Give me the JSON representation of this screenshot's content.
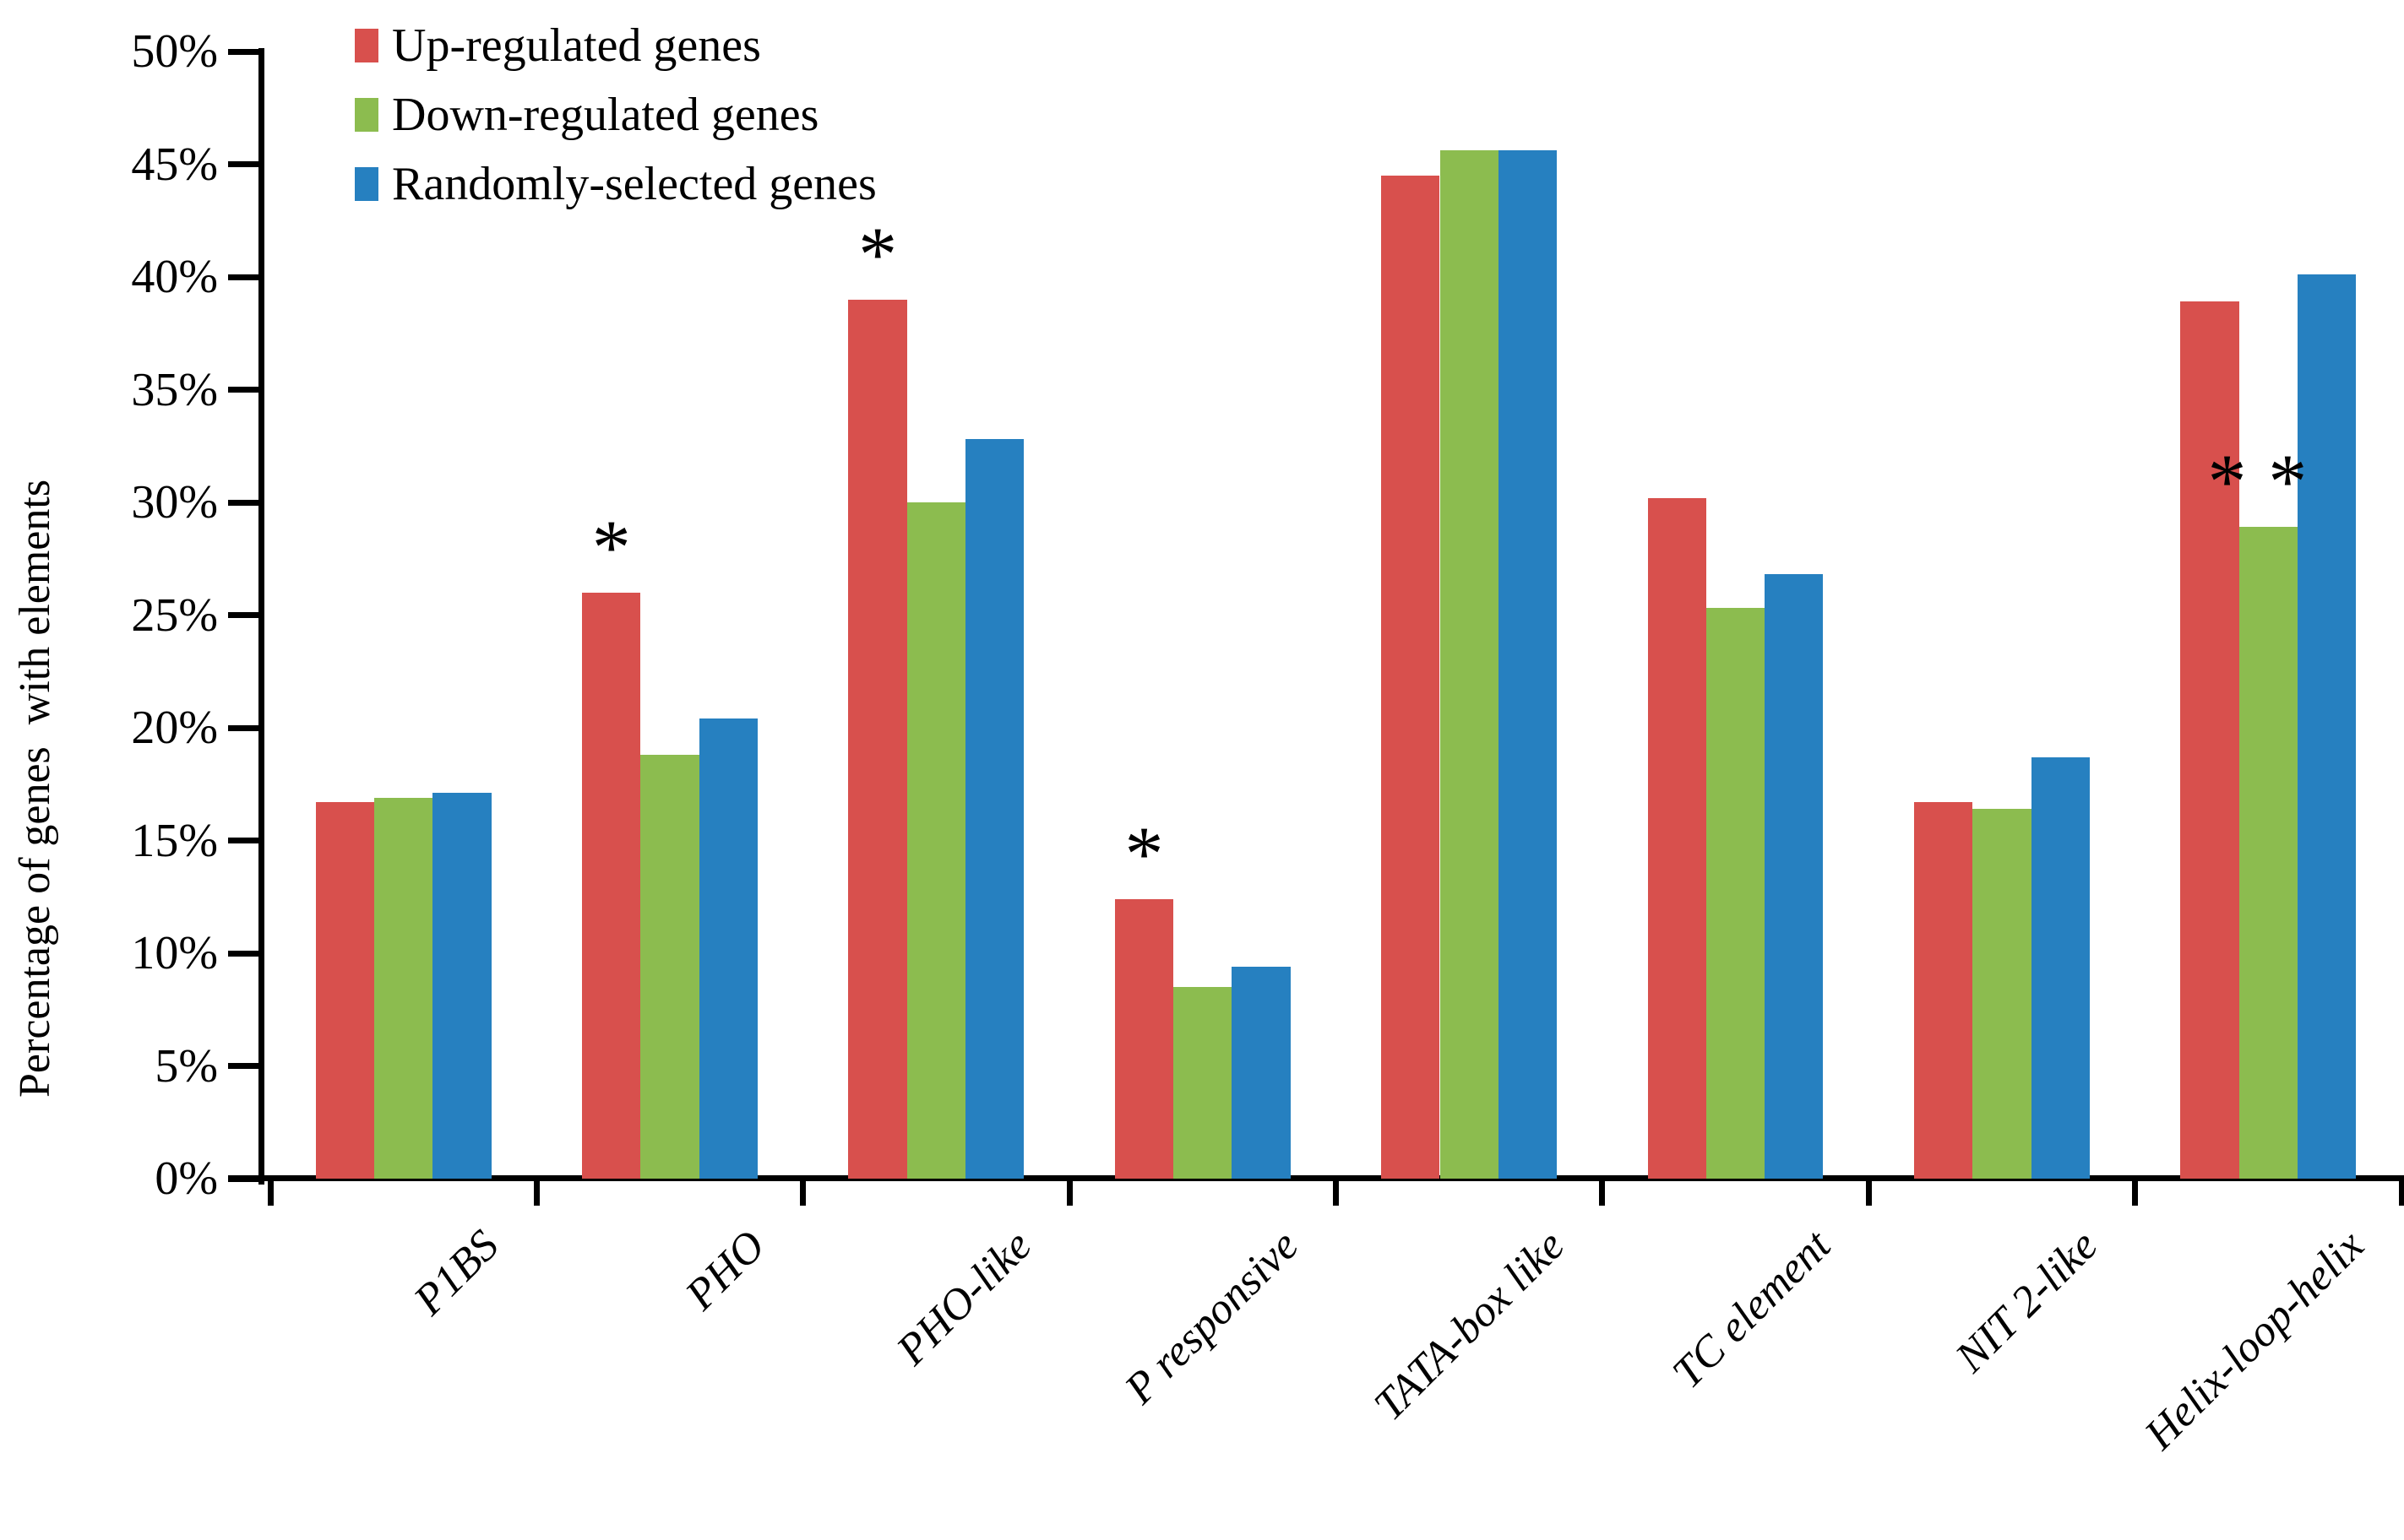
{
  "chart_data": {
    "type": "bar",
    "title": "",
    "ylabel": "Percentage of genes  with elements",
    "xlabel": "",
    "ylim": [
      0,
      50
    ],
    "ytick_step": 5,
    "ytick_labels": [
      "0%",
      "5%",
      "10%",
      "15%",
      "20%",
      "25%",
      "30%",
      "35%",
      "40%",
      "45%",
      "50%"
    ],
    "grid": false,
    "legend_position": "top-left",
    "categories": [
      "P1BS",
      "PHO",
      "PHO-like",
      "P responsive",
      "TATA-box like",
      "TC element",
      "NIT 2-like",
      "Helix-loop-helix"
    ],
    "series": [
      {
        "name": "Up-regulated genes",
        "color": "#D8504D",
        "values": [
          16.7,
          26.0,
          39.0,
          12.4,
          44.5,
          30.2,
          16.7,
          38.9
        ]
      },
      {
        "name": "Down-regulated genes",
        "color": "#8CBC4F",
        "values": [
          16.9,
          18.8,
          30.0,
          8.5,
          45.6,
          25.3,
          16.4,
          28.9
        ]
      },
      {
        "name": "Randomly-selected genes",
        "color": "#2680C0",
        "values": [
          17.1,
          20.4,
          32.8,
          9.4,
          45.6,
          26.8,
          18.7,
          40.1
        ]
      }
    ],
    "annotations": [
      {
        "category": "PHO",
        "series": "Up-regulated genes",
        "symbol": "*"
      },
      {
        "category": "PHO-like",
        "series": "Up-regulated genes",
        "symbol": "*"
      },
      {
        "category": "P responsive",
        "series": "Up-regulated genes",
        "symbol": "*"
      },
      {
        "category": "Helix-loop-helix",
        "series": "Down-regulated genes",
        "symbol": "**"
      }
    ]
  }
}
